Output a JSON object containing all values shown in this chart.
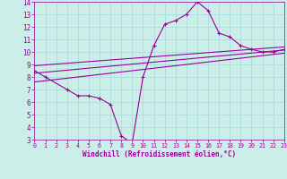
{
  "xlabel": "Windchill (Refroidissement éolien,°C)",
  "background_color": "#cceee8",
  "line_color": "#990099",
  "grid_color": "#aadddd",
  "xlim": [
    0,
    23
  ],
  "ylim": [
    3,
    14
  ],
  "xticks": [
    0,
    1,
    2,
    3,
    4,
    5,
    6,
    7,
    8,
    9,
    10,
    11,
    12,
    13,
    14,
    15,
    16,
    17,
    18,
    19,
    20,
    21,
    22,
    23
  ],
  "yticks": [
    3,
    4,
    5,
    6,
    7,
    8,
    9,
    10,
    11,
    12,
    13,
    14
  ],
  "line1_x": [
    0,
    1,
    3,
    4,
    5,
    6,
    7,
    8,
    9,
    10,
    11,
    12,
    13,
    14,
    15,
    16,
    17,
    18,
    19,
    20,
    21,
    22,
    23
  ],
  "line1_y": [
    8.5,
    8.0,
    7.0,
    6.5,
    6.5,
    6.3,
    5.8,
    3.3,
    2.7,
    8.0,
    10.5,
    12.2,
    12.5,
    13.0,
    14.0,
    13.3,
    11.5,
    11.2,
    10.5,
    10.2,
    10.0,
    10.0,
    10.2
  ],
  "line2_x": [
    0,
    23
  ],
  "line2_y": [
    8.3,
    10.15
  ],
  "line3_x": [
    0,
    23
  ],
  "line3_y": [
    7.6,
    9.9
  ],
  "line4_x": [
    0,
    23
  ],
  "line4_y": [
    8.9,
    10.4
  ],
  "marker": "+"
}
